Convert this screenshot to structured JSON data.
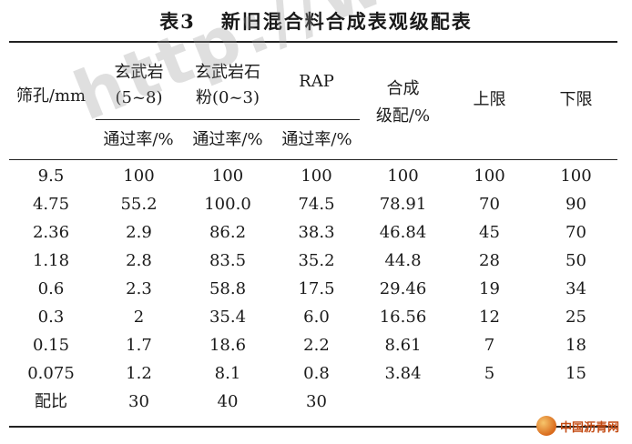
{
  "title": {
    "number": "表3",
    "text": "新旧混合料合成表观级配表"
  },
  "header": {
    "sieve": "筛孔/mm",
    "basalt_1": "玄武岩",
    "basalt_1_size": "(5~8)",
    "basalt_2": "玄武岩石",
    "basalt_2_size": "粉(0~3)",
    "rap": "RAP",
    "pass": "通过率/%",
    "synth_1": "合成",
    "synth_2": "级配/%",
    "upper": "上限",
    "lower": "下限"
  },
  "rows": [
    [
      "9.5",
      "100",
      "100",
      "100",
      "100",
      "100",
      "100"
    ],
    [
      "4.75",
      "55.2",
      "100.0",
      "74.5",
      "78.91",
      "70",
      "90"
    ],
    [
      "2.36",
      "2.9",
      "86.2",
      "38.3",
      "46.84",
      "45",
      "70"
    ],
    [
      "1.18",
      "2.8",
      "83.5",
      "35.2",
      "44.8",
      "28",
      "50"
    ],
    [
      "0.6",
      "2.3",
      "58.8",
      "17.5",
      "29.46",
      "19",
      "34"
    ],
    [
      "0.3",
      "2",
      "35.4",
      "6.0",
      "16.56",
      "12",
      "25"
    ],
    [
      "0.15",
      "1.7",
      "18.6",
      "2.2",
      "8.61",
      "7",
      "18"
    ],
    [
      "0.075",
      "1.2",
      "8.1",
      "0.8",
      "3.84",
      "5",
      "15"
    ],
    [
      "配比",
      "30",
      "40",
      "30",
      "",
      "",
      ""
    ]
  ],
  "watermark": "http://www.ixuesh",
  "logo": "中国沥青网"
}
